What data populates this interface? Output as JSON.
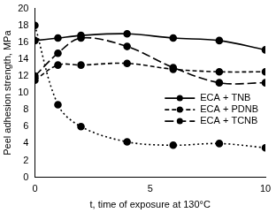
{
  "chart_data": {
    "type": "line",
    "x_label": "t, time of exposure at 130°C",
    "y_label": "Peel adhesion strength, MPa",
    "xlim": [
      0,
      10
    ],
    "xticks": [
      0,
      5,
      10
    ],
    "ylim": [
      0,
      20
    ],
    "yticks": [
      0,
      2,
      4,
      6,
      8,
      10,
      12,
      14,
      16,
      18,
      20
    ],
    "grid": false,
    "legend": "right",
    "x": [
      0,
      1,
      2,
      4,
      6,
      8,
      10
    ],
    "series": [
      {
        "name": "ECA + TNB",
        "color": "#000000",
        "marker": "circle",
        "line_style": "solid",
        "values": [
          16.2,
          16.5,
          16.8,
          17.0,
          16.5,
          16.2,
          15.1
        ]
      },
      {
        "name": "ECA + PDNB",
        "color": "#000000",
        "marker": "circle",
        "line_style": "dashed",
        "values": [
          11.5,
          13.3,
          13.3,
          13.5,
          12.8,
          12.5,
          12.5
        ]
      },
      {
        "name": "ECA + TCNB",
        "color": "#000000",
        "marker": "circle",
        "line_style": "long_dashed",
        "values": [
          12.0,
          14.7,
          16.5,
          15.5,
          13.0,
          11.2,
          11.2
        ]
      },
      {
        "color": "#000000",
        "marker": "circle",
        "line_style": "dotted",
        "values": [
          18.0,
          8.6,
          6.0,
          4.2,
          3.8,
          4.0,
          3.5
        ]
      }
    ]
  }
}
